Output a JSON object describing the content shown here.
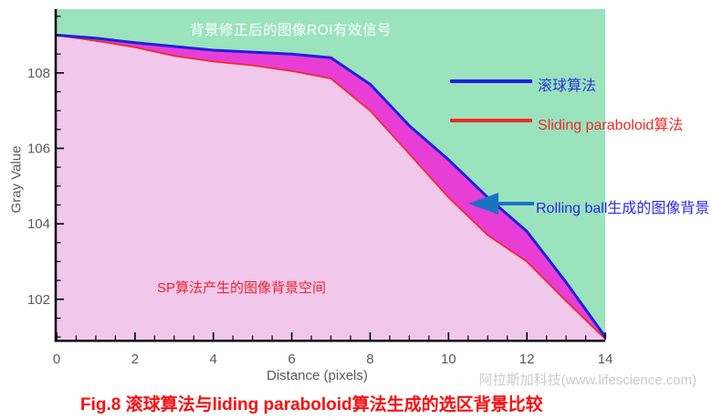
{
  "title": "背景修正后的图像ROI有效信号",
  "watermark": "阿拉斯加科技(www.lifescience.com)",
  "caption": "Fig.8 滚球算法与liding paraboloid算法生成的选区背景比较",
  "axes": {
    "x_label": "Distance (pixels)",
    "y_label": "Gray Value",
    "x_ticks": [
      0,
      2,
      4,
      6,
      8,
      10,
      12,
      14
    ],
    "y_ticks": [
      102,
      104,
      106,
      108
    ],
    "x_range": [
      0,
      14
    ],
    "y_range": [
      100.93,
      109.69
    ],
    "minor_step": 0.5
  },
  "legend": {
    "items": [
      {
        "label": "滚球算法",
        "color": "#1f1fe0"
      },
      {
        "label": "Sliding paraboloid算法",
        "color": "#ee2c2c"
      }
    ]
  },
  "annotations": {
    "rolling_ball_label": "Rolling ball生成的图像背景",
    "sp_area_label": "SP算法产生的图像背景空间"
  },
  "colors": {
    "plot_bg": "#9ae3bd",
    "sp_area_fill": "#f1c7ec",
    "band_fill": "#e83ed6",
    "rolling_ball_line": "#1f1fe0",
    "sp_line": "#ee2c2c",
    "arrow": "#1b72c4",
    "axis": "#000000",
    "tick_text": "#5a5a5a"
  },
  "chart_data": {
    "type": "area",
    "title": "背景修正后的图像ROI有效信号",
    "xlabel": "Distance (pixels)",
    "ylabel": "Gray Value",
    "xlim": [
      0,
      14
    ],
    "ylim": [
      100.9,
      109.7
    ],
    "grid": false,
    "legend_position": "upper right",
    "x": [
      0,
      1,
      2,
      3,
      4,
      5,
      6,
      7,
      8,
      9,
      10,
      11,
      12,
      13,
      14
    ],
    "series": [
      {
        "name": "滚球算法 (Rolling ball)",
        "color": "#1f1fe0",
        "values": [
          109.0,
          108.92,
          108.8,
          108.7,
          108.6,
          108.55,
          108.5,
          108.4,
          107.7,
          106.6,
          105.7,
          104.7,
          103.8,
          102.45,
          101.0
        ]
      },
      {
        "name": "Sliding paraboloid算法",
        "color": "#ee2c2c",
        "values": [
          109.0,
          108.85,
          108.68,
          108.45,
          108.3,
          108.2,
          108.05,
          107.85,
          107.0,
          105.85,
          104.7,
          103.7,
          103.0,
          101.95,
          100.95
        ]
      }
    ]
  }
}
